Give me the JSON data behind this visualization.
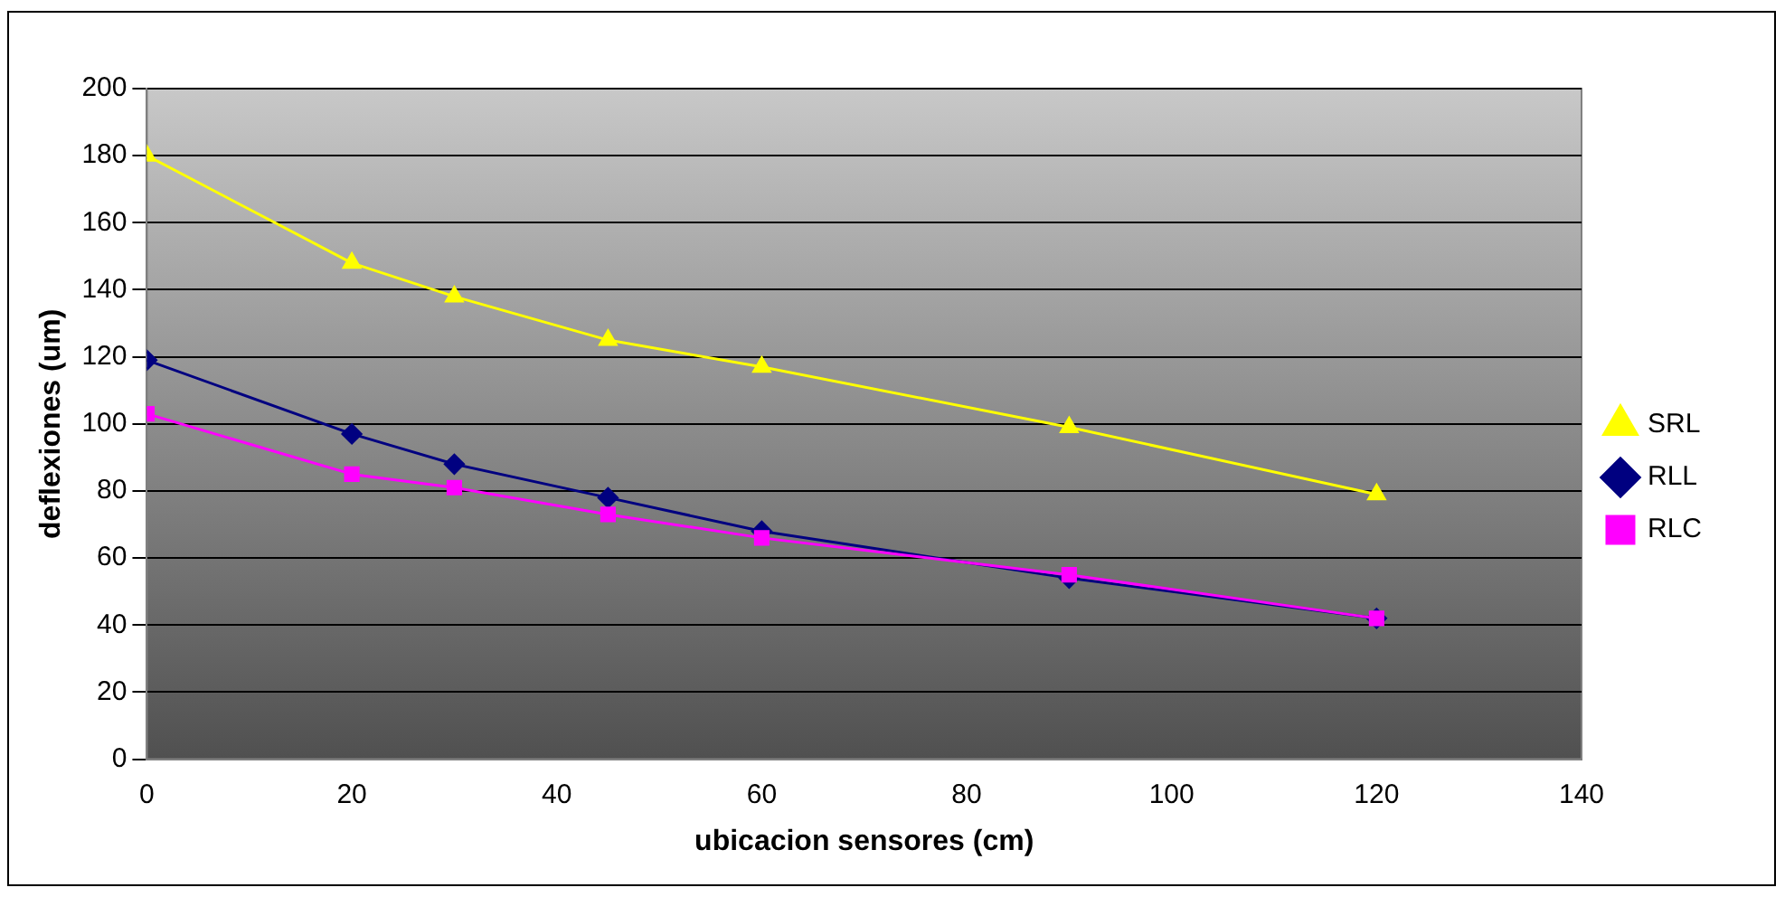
{
  "chart_data": {
    "type": "line",
    "xlabel": "ubicacion sensores (cm)",
    "ylabel": "deflexiones (um)",
    "x": [
      0,
      20,
      30,
      45,
      60,
      90,
      120
    ],
    "series": [
      {
        "name": "SRL",
        "color": "#ffff00",
        "marker": "triangle",
        "values": [
          180,
          148,
          138,
          125,
          117,
          99,
          79
        ]
      },
      {
        "name": "RLL",
        "color": "#000080",
        "marker": "diamond",
        "values": [
          119,
          97,
          88,
          78,
          68,
          54,
          42
        ]
      },
      {
        "name": "RLC",
        "color": "#ff00ff",
        "marker": "square",
        "values": [
          103,
          85,
          81,
          73,
          66,
          55,
          42
        ]
      }
    ],
    "xlim": [
      0,
      140
    ],
    "xticks": [
      0,
      20,
      40,
      60,
      80,
      100,
      120,
      140
    ],
    "ylim": [
      0,
      200
    ],
    "yticks": [
      0,
      20,
      40,
      60,
      80,
      100,
      120,
      140,
      160,
      180,
      200
    ],
    "grid": "y",
    "legend": "right"
  }
}
